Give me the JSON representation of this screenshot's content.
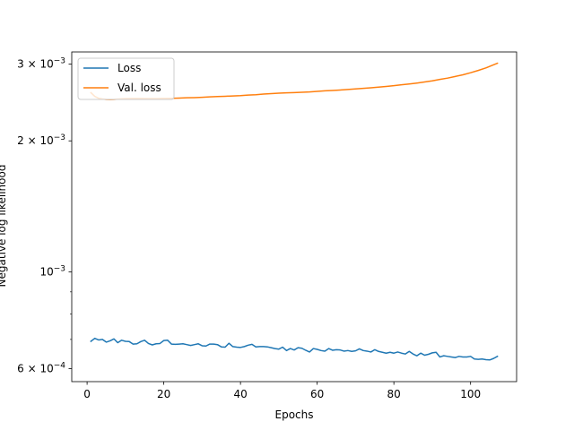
{
  "chart_data": {
    "type": "line",
    "xlabel": "Epochs",
    "ylabel": "Negative log likelihood",
    "xlim": [
      -4,
      112
    ],
    "ylim": [
      0.00056,
      0.0032
    ],
    "yscale": "log",
    "grid": false,
    "legend_position": "top-left",
    "x_ticks": [
      0,
      20,
      40,
      60,
      80,
      100
    ],
    "y_ticks": [
      {
        "value": 0.0006,
        "mantissa": "6",
        "exp": "−4"
      },
      {
        "value": 0.001,
        "mantissa": "",
        "exp": "−3"
      },
      {
        "value": 0.002,
        "mantissa": "2",
        "exp": "−3"
      },
      {
        "value": 0.003,
        "mantissa": "3",
        "exp": "−3"
      }
    ],
    "y_minor_ticks": [
      0.0007,
      0.0008,
      0.0009
    ],
    "series": [
      {
        "name": "Loss",
        "color": "#1f77b4",
        "points": [
          [
            1,
            0.000693
          ],
          [
            2,
            0.000704
          ],
          [
            3,
            0.000698
          ],
          [
            4,
            0.0007
          ],
          [
            5,
            0.00069
          ],
          [
            6,
            0.000695
          ],
          [
            7,
            0.000702
          ],
          [
            8,
            0.000688
          ],
          [
            9,
            0.000697
          ],
          [
            10,
            0.000693
          ],
          [
            11,
            0.000692
          ],
          [
            12,
            0.000683
          ],
          [
            13,
            0.000684
          ],
          [
            14,
            0.000692
          ],
          [
            15,
            0.000697
          ],
          [
            16,
            0.000685
          ],
          [
            17,
            0.00068
          ],
          [
            18,
            0.000684
          ],
          [
            19,
            0.000685
          ],
          [
            20,
            0.000696
          ],
          [
            21,
            0.000697
          ],
          [
            22,
            0.000683
          ],
          [
            23,
            0.000682
          ],
          [
            24,
            0.000683
          ],
          [
            25,
            0.000684
          ],
          [
            26,
            0.000681
          ],
          [
            27,
            0.000678
          ],
          [
            28,
            0.000681
          ],
          [
            29,
            0.000684
          ],
          [
            30,
            0.000677
          ],
          [
            31,
            0.000676
          ],
          [
            32,
            0.000683
          ],
          [
            33,
            0.000683
          ],
          [
            34,
            0.000681
          ],
          [
            35,
            0.000673
          ],
          [
            36,
            0.000672
          ],
          [
            37,
            0.000686
          ],
          [
            38,
            0.000674
          ],
          [
            39,
            0.000672
          ],
          [
            40,
            0.000671
          ],
          [
            41,
            0.000674
          ],
          [
            42,
            0.000679
          ],
          [
            43,
            0.000682
          ],
          [
            44,
            0.000673
          ],
          [
            45,
            0.000674
          ],
          [
            46,
            0.000674
          ],
          [
            47,
            0.000673
          ],
          [
            48,
            0.00067
          ],
          [
            49,
            0.000667
          ],
          [
            50,
            0.000665
          ],
          [
            51,
            0.000672
          ],
          [
            52,
            0.00066
          ],
          [
            53,
            0.000667
          ],
          [
            54,
            0.000662
          ],
          [
            55,
            0.00067
          ],
          [
            56,
            0.000668
          ],
          [
            57,
            0.000661
          ],
          [
            58,
            0.000655
          ],
          [
            59,
            0.000667
          ],
          [
            60,
            0.000664
          ],
          [
            61,
            0.00066
          ],
          [
            62,
            0.000658
          ],
          [
            63,
            0.000667
          ],
          [
            64,
            0.000661
          ],
          [
            65,
            0.000663
          ],
          [
            66,
            0.000662
          ],
          [
            67,
            0.000658
          ],
          [
            68,
            0.00066
          ],
          [
            69,
            0.000657
          ],
          [
            70,
            0.000659
          ],
          [
            71,
            0.000666
          ],
          [
            72,
            0.00066
          ],
          [
            73,
            0.000658
          ],
          [
            74,
            0.000655
          ],
          [
            75,
            0.000663
          ],
          [
            76,
            0.000657
          ],
          [
            77,
            0.000654
          ],
          [
            78,
            0.000651
          ],
          [
            79,
            0.000654
          ],
          [
            80,
            0.000651
          ],
          [
            81,
            0.000655
          ],
          [
            82,
            0.000651
          ],
          [
            83,
            0.000648
          ],
          [
            84,
            0.000657
          ],
          [
            85,
            0.000648
          ],
          [
            86,
            0.000642
          ],
          [
            87,
            0.000651
          ],
          [
            88,
            0.000644
          ],
          [
            89,
            0.000647
          ],
          [
            90,
            0.000652
          ],
          [
            91,
            0.000654
          ],
          [
            92,
            0.000638
          ],
          [
            93,
            0.000642
          ],
          [
            94,
            0.00064
          ],
          [
            95,
            0.000638
          ],
          [
            96,
            0.000636
          ],
          [
            97,
            0.00064
          ],
          [
            98,
            0.000638
          ],
          [
            99,
            0.000638
          ],
          [
            100,
            0.00064
          ],
          [
            101,
            0.000631
          ],
          [
            102,
            0.00063
          ],
          [
            103,
            0.000631
          ],
          [
            104,
            0.000629
          ],
          [
            105,
            0.000628
          ],
          [
            106,
            0.000633
          ],
          [
            107,
            0.00064
          ]
        ]
      },
      {
        "name": "Val. loss",
        "color": "#ff7f0e",
        "points": [
          [
            1,
            0.00258
          ],
          [
            2,
            0.00253
          ],
          [
            3,
            0.002505
          ],
          [
            4,
            0.002495
          ],
          [
            5,
            0.00249
          ],
          [
            6,
            0.002488
          ],
          [
            7,
            0.00249
          ],
          [
            8,
            0.002494
          ],
          [
            9,
            0.002497
          ],
          [
            10,
            0.0025
          ],
          [
            12,
            0.002501
          ],
          [
            14,
            0.002501
          ],
          [
            16,
            0.0025
          ],
          [
            18,
            0.0025
          ],
          [
            20,
            0.002503
          ],
          [
            22,
            0.002505
          ],
          [
            24,
            0.002508
          ],
          [
            26,
            0.002512
          ],
          [
            28,
            0.002514
          ],
          [
            30,
            0.002518
          ],
          [
            32,
            0.002524
          ],
          [
            34,
            0.002528
          ],
          [
            36,
            0.002532
          ],
          [
            38,
            0.002536
          ],
          [
            40,
            0.00254
          ],
          [
            42,
            0.002548
          ],
          [
            44,
            0.002553
          ],
          [
            46,
            0.002561
          ],
          [
            48,
            0.002567
          ],
          [
            50,
            0.002573
          ],
          [
            52,
            0.002578
          ],
          [
            54,
            0.002581
          ],
          [
            56,
            0.002585
          ],
          [
            58,
            0.00259
          ],
          [
            60,
            0.002598
          ],
          [
            62,
            0.002605
          ],
          [
            64,
            0.002611
          ],
          [
            66,
            0.002617
          ],
          [
            68,
            0.002625
          ],
          [
            70,
            0.002632
          ],
          [
            72,
            0.00264
          ],
          [
            74,
            0.002648
          ],
          [
            76,
            0.002657
          ],
          [
            78,
            0.002667
          ],
          [
            80,
            0.002678
          ],
          [
            82,
            0.00269
          ],
          [
            84,
            0.002702
          ],
          [
            86,
            0.002715
          ],
          [
            88,
            0.00273
          ],
          [
            90,
            0.002747
          ],
          [
            92,
            0.002768
          ],
          [
            94,
            0.002787
          ],
          [
            96,
            0.002811
          ],
          [
            98,
            0.002836
          ],
          [
            100,
            0.002867
          ],
          [
            102,
            0.002902
          ],
          [
            104,
            0.002941
          ],
          [
            106,
            0.00299
          ],
          [
            107,
            0.003015
          ]
        ]
      }
    ]
  }
}
